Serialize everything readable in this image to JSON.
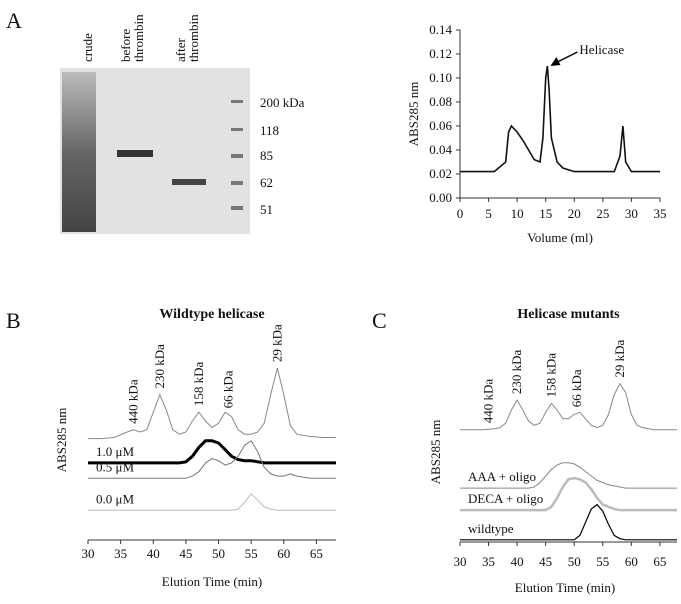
{
  "panels": [
    "A",
    "B",
    "C"
  ],
  "gel": {
    "lanes": [
      [
        "crude"
      ],
      [
        "before",
        "thrombin"
      ],
      [
        "after",
        "thrombin"
      ]
    ],
    "markers": [
      "200 kDa",
      "118",
      "85",
      "62",
      "51"
    ]
  },
  "chart_data": [
    {
      "type": "line",
      "ylabel": "ABS285 nm",
      "xlabel": "Volume (ml)",
      "x": [
        0,
        2,
        4,
        6,
        8,
        8.5,
        9,
        10,
        11,
        12,
        13,
        14,
        14.5,
        15,
        15.3,
        15.6,
        16,
        17,
        18,
        20,
        22,
        24,
        26,
        27,
        28,
        28.5,
        29,
        30,
        32,
        35
      ],
      "series": [
        {
          "color": "#111111",
          "values": [
            0.022,
            0.022,
            0.022,
            0.022,
            0.03,
            0.055,
            0.06,
            0.055,
            0.048,
            0.04,
            0.032,
            0.03,
            0.05,
            0.1,
            0.11,
            0.09,
            0.05,
            0.03,
            0.025,
            0.022,
            0.022,
            0.022,
            0.022,
            0.022,
            0.035,
            0.06,
            0.03,
            0.022,
            0.022,
            0.022
          ]
        }
      ],
      "xlim": [
        0,
        35
      ],
      "xticks": [
        0,
        5,
        10,
        15,
        20,
        25,
        30,
        35
      ],
      "ylim": [
        0,
        0.14
      ],
      "yticks": [
        {
          "value": 0,
          "label": "0.00"
        },
        {
          "value": 0.02,
          "label": "0.02"
        },
        {
          "value": 0.04,
          "label": "0.04"
        },
        {
          "value": 0.06,
          "label": "0.06"
        },
        {
          "value": 0.08,
          "label": "0.08"
        },
        {
          "value": 0.1,
          "label": "0.10"
        },
        {
          "value": 0.12,
          "label": "0.12"
        },
        {
          "value": 0.14,
          "label": "0.14"
        }
      ],
      "annotations": [
        {
          "text": "Helicase",
          "x": 15.3,
          "y": 0.11
        }
      ]
    },
    {
      "type": "line",
      "title": "Wildtype helicase",
      "ylabel": "ABS285 nm",
      "xlabel": "Elution Time (min)",
      "x": [
        30,
        32,
        34,
        36,
        37,
        38,
        39,
        40,
        41,
        42,
        43,
        44,
        45,
        46,
        47,
        48,
        49,
        50,
        51,
        52,
        53,
        54,
        55,
        56,
        57,
        58,
        59,
        60,
        61,
        62,
        64,
        66,
        68
      ],
      "series": [
        {
          "color": "#888888",
          "values": [
            3.8,
            3.8,
            3.85,
            4.1,
            4.2,
            4.1,
            4.2,
            5.0,
            5.8,
            5.1,
            4.2,
            4.0,
            4.1,
            4.6,
            5.0,
            4.6,
            4.3,
            4.5,
            5.0,
            4.8,
            4.2,
            4.0,
            4.0,
            4.1,
            4.5,
            5.8,
            7.0,
            5.8,
            4.4,
            4.0,
            3.9,
            3.85,
            3.85
          ]
        },
        {
          "name": "1.0 μM",
          "color": "#000000",
          "values": [
            2.7,
            2.7,
            2.7,
            2.7,
            2.7,
            2.7,
            2.7,
            2.7,
            2.7,
            2.7,
            2.7,
            2.7,
            2.75,
            3.0,
            3.4,
            3.7,
            3.7,
            3.6,
            3.3,
            3.0,
            2.85,
            2.8,
            2.8,
            2.75,
            2.7,
            2.7,
            2.7,
            2.7,
            2.7,
            2.7,
            2.7,
            2.7,
            2.7
          ]
        },
        {
          "name": "0.5 μM",
          "color": "#777777",
          "values": [
            2.0,
            2.0,
            2.0,
            2.0,
            2.0,
            2.0,
            2.0,
            2.0,
            2.0,
            2.0,
            2.0,
            2.0,
            2.0,
            2.1,
            2.3,
            2.7,
            2.9,
            2.8,
            2.6,
            2.7,
            3.0,
            3.5,
            3.7,
            3.2,
            2.5,
            2.2,
            2.1,
            2.1,
            2.2,
            2.1,
            2.0,
            2.0,
            2.0
          ]
        },
        {
          "name": "0.0 μM",
          "color": "#bbbbbb",
          "values": [
            0.55,
            0.55,
            0.55,
            0.55,
            0.55,
            0.55,
            0.55,
            0.55,
            0.55,
            0.55,
            0.55,
            0.55,
            0.55,
            0.55,
            0.55,
            0.55,
            0.55,
            0.55,
            0.55,
            0.55,
            0.6,
            0.9,
            1.3,
            1.0,
            0.7,
            0.6,
            0.55,
            0.55,
            0.55,
            0.55,
            0.55,
            0.55,
            0.55
          ]
        }
      ],
      "xlim": [
        30,
        68
      ],
      "xticks": [
        30,
        35,
        40,
        45,
        50,
        55,
        60,
        65
      ],
      "ylim": [
        -0.8,
        10
      ],
      "annotations": [
        {
          "text": "440 kDa",
          "x": 37
        },
        {
          "text": "230 kDa",
          "x": 41
        },
        {
          "text": "158 kDa",
          "x": 47
        },
        {
          "text": "66 kDa",
          "x": 51.5
        },
        {
          "text": "29 kDa",
          "x": 59
        }
      ]
    },
    {
      "type": "line",
      "title": "Helicase mutants",
      "ylabel": "ABS285 nm",
      "xlabel": "Elution Time (min)",
      "x": [
        30,
        32,
        34,
        36,
        37,
        38,
        39,
        40,
        41,
        42,
        43,
        44,
        45,
        46,
        47,
        48,
        49,
        50,
        51,
        52,
        53,
        54,
        55,
        56,
        57,
        58,
        59,
        60,
        61,
        62,
        64,
        66,
        68
      ],
      "series": [
        {
          "color": "#888888",
          "values": [
            5.1,
            5.1,
            5.1,
            5.15,
            5.2,
            5.4,
            6.0,
            6.45,
            6.0,
            5.5,
            5.3,
            5.4,
            5.9,
            6.3,
            6.0,
            5.6,
            5.6,
            5.8,
            5.9,
            5.6,
            5.3,
            5.2,
            5.3,
            5.8,
            6.7,
            7.2,
            6.8,
            5.8,
            5.3,
            5.2,
            5.1,
            5.1,
            5.1
          ]
        },
        {
          "name": "AAA + oligo",
          "color": "#888888",
          "values": [
            2.45,
            2.45,
            2.45,
            2.45,
            2.45,
            2.45,
            2.45,
            2.45,
            2.45,
            2.45,
            2.5,
            2.7,
            3.0,
            3.3,
            3.5,
            3.6,
            3.6,
            3.55,
            3.4,
            3.2,
            3.0,
            2.8,
            2.7,
            2.6,
            2.55,
            2.5,
            2.45,
            2.45,
            2.45,
            2.45,
            2.45,
            2.45,
            2.45
          ]
        },
        {
          "name": "DECA + oligo",
          "color": "#bbbbbb",
          "values": [
            1.45,
            1.45,
            1.45,
            1.45,
            1.45,
            1.45,
            1.45,
            1.45,
            1.45,
            1.45,
            1.45,
            1.45,
            1.45,
            1.6,
            2.0,
            2.5,
            2.85,
            2.9,
            2.85,
            2.7,
            2.4,
            2.0,
            1.7,
            1.6,
            1.5,
            1.45,
            1.45,
            1.45,
            1.45,
            1.45,
            1.45,
            1.45,
            1.45
          ]
        },
        {
          "name": "wildtype",
          "color": "#000000",
          "values": [
            0.1,
            0.1,
            0.1,
            0.1,
            0.1,
            0.1,
            0.1,
            0.1,
            0.1,
            0.1,
            0.1,
            0.1,
            0.1,
            0.1,
            0.1,
            0.1,
            0.1,
            0.1,
            0.3,
            0.9,
            1.5,
            1.7,
            1.4,
            0.8,
            0.3,
            0.15,
            0.1,
            0.1,
            0.1,
            0.1,
            0.1,
            0.1,
            0.1
          ]
        }
      ],
      "xlim": [
        30,
        68
      ],
      "xticks": [
        30,
        35,
        40,
        45,
        50,
        55,
        60,
        65
      ],
      "ylim": [
        0,
        10
      ],
      "annotations": [
        {
          "text": "440 kDa",
          "x": 35
        },
        {
          "text": "230 kDa",
          "x": 40
        },
        {
          "text": "158 kDa",
          "x": 46
        },
        {
          "text": "66 kDa",
          "x": 50.5
        },
        {
          "text": "29 kDa",
          "x": 58
        }
      ]
    }
  ]
}
